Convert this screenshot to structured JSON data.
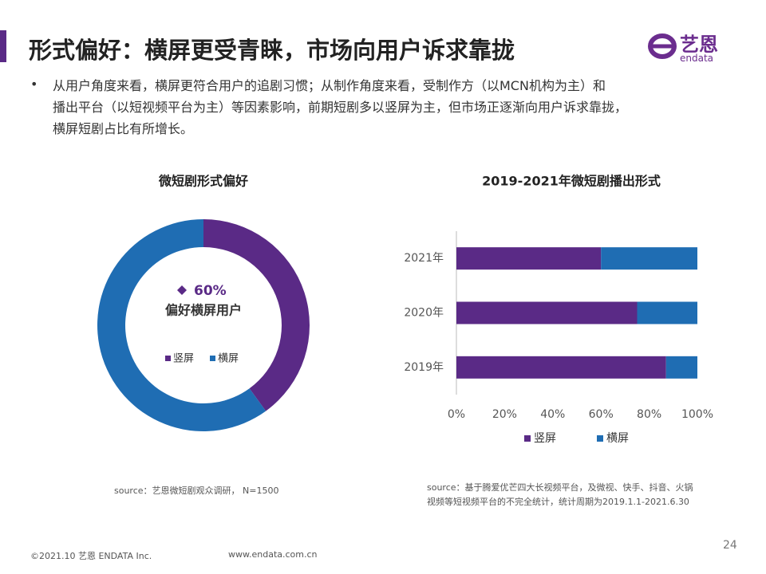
{
  "page": {
    "title": "形式偏好：横屏更受青睐，市场向用户诉求靠拢",
    "logo": {
      "name": "艺恩",
      "sub": "endata"
    },
    "bullet": [
      "从用户角度来看，横屏更符合用户的追剧习惯；从制作角度来看，受制作方（以MCN机构为主）和",
      "播出平台（以短视频平台为主）等因素影响，前期短剧多以竖屏为主，但市场正逐渐向用户诉求靠拢，",
      "横屏短剧占比有所增长。"
    ],
    "footer": {
      "copyright": "©2021.10 艺恩 ENDATA Inc.",
      "url": "www.endata.com.cn",
      "page": "24"
    }
  },
  "chart_data": [
    {
      "type": "pie",
      "title": "微短剧形式偏好",
      "categories": [
        "竖屏",
        "横屏"
      ],
      "values": [
        40,
        60
      ],
      "value_labels": [
        null,
        "60%"
      ],
      "colors": [
        "#5a2a86",
        "#1f6db3"
      ],
      "annotation": "偏好横屏用户",
      "donut": true,
      "source": "source：艺恩微短剧观众调研， N=1500"
    },
    {
      "type": "stacked-bar-horizontal",
      "title": "2019-2021年微短剧播出形式",
      "categories": [
        "2021年",
        "2020年",
        "2019年"
      ],
      "series": [
        {
          "name": "竖屏",
          "color": "#5a2a86",
          "values": [
            60,
            75,
            87
          ]
        },
        {
          "name": "横屏",
          "color": "#1f6db3",
          "values": [
            40,
            25,
            13
          ]
        }
      ],
      "xlim": [
        0,
        100
      ],
      "xticks": [
        {
          "value": 0,
          "label": "0%"
        },
        {
          "value": 20,
          "label": "20%"
        },
        {
          "value": 40,
          "label": "40%"
        },
        {
          "value": 60,
          "label": "60%"
        },
        {
          "value": 80,
          "label": "80%"
        },
        {
          "value": 100,
          "label": "100%"
        }
      ],
      "source": [
        "source：基于腾爱优芒四大长视频平台，及微视、快手、抖音、火锅",
        "视频等短视频平台的不完全统计，统计周期为2019.1.1-2021.6.30"
      ]
    }
  ]
}
